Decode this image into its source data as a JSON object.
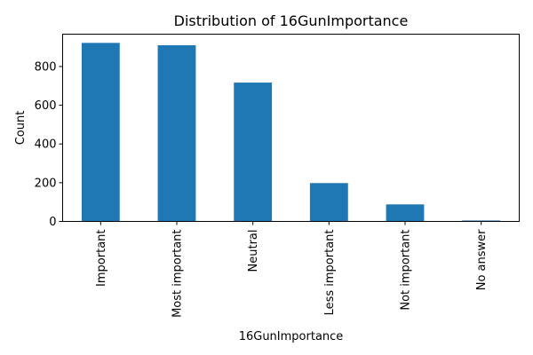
{
  "chart_data": {
    "type": "bar",
    "title": "Distribution of 16GunImportance",
    "xlabel": "16GunImportance",
    "ylabel": "Count",
    "categories": [
      "Important",
      "Most important",
      "Neutral",
      "Less important",
      "Not important",
      "No answer"
    ],
    "values": [
      922,
      910,
      717,
      198,
      88,
      5
    ],
    "ylim": [
      0,
      967
    ],
    "yticks": [
      0,
      200,
      400,
      600,
      800
    ],
    "bar_color": "#1f77b4",
    "grid": false,
    "legend": "none"
  }
}
